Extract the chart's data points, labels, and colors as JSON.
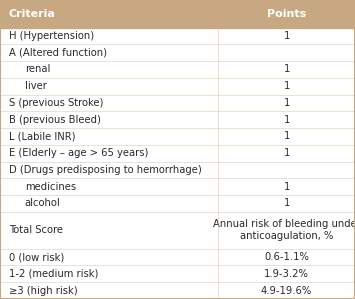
{
  "header_bg": "#c8a882",
  "header_text_color": "#ffffff",
  "table_bg": "#ffffff",
  "border_color": "#c8a882",
  "row_line_color": "#d4b896",
  "text_color": "#2a2a2a",
  "header": [
    "Criteria",
    "Points"
  ],
  "rows": [
    {
      "criteria": "H (Hypertension)",
      "points": "1",
      "indent": false
    },
    {
      "criteria": "A (Altered function)",
      "points": "",
      "indent": false
    },
    {
      "criteria": "renal",
      "points": "1",
      "indent": true
    },
    {
      "criteria": "liver",
      "points": "1",
      "indent": true
    },
    {
      "criteria": "S (previous Stroke)",
      "points": "1",
      "indent": false
    },
    {
      "criteria": "B (previous Bleed)",
      "points": "1",
      "indent": false
    },
    {
      "criteria": "L (Labile INR)",
      "points": "1",
      "indent": false
    },
    {
      "criteria": "E (Elderly – age > 65 years)",
      "points": "1",
      "indent": false
    },
    {
      "criteria": "D (Drugs predisposing to hemorrhage)",
      "points": "",
      "indent": false
    },
    {
      "criteria": "medicines",
      "points": "1",
      "indent": true
    },
    {
      "criteria": "alcohol",
      "points": "1",
      "indent": true
    },
    {
      "criteria": "Total Score",
      "points": "Annual risk of bleeding under\nanticoagulation, %",
      "indent": false,
      "multiline": true
    },
    {
      "criteria": "0 (low risk)",
      "points": "0.6-1.1%",
      "indent": false
    },
    {
      "criteria": "1-2 (medium risk)",
      "points": "1.9-3.2%",
      "indent": false
    },
    {
      "criteria": "≥3 (high risk)",
      "points": "4.9-19.6%",
      "indent": false
    }
  ],
  "col_split": 0.615,
  "header_fontsize": 8.0,
  "body_fontsize": 7.2,
  "fig_width": 3.55,
  "fig_height": 2.99,
  "dpi": 100
}
